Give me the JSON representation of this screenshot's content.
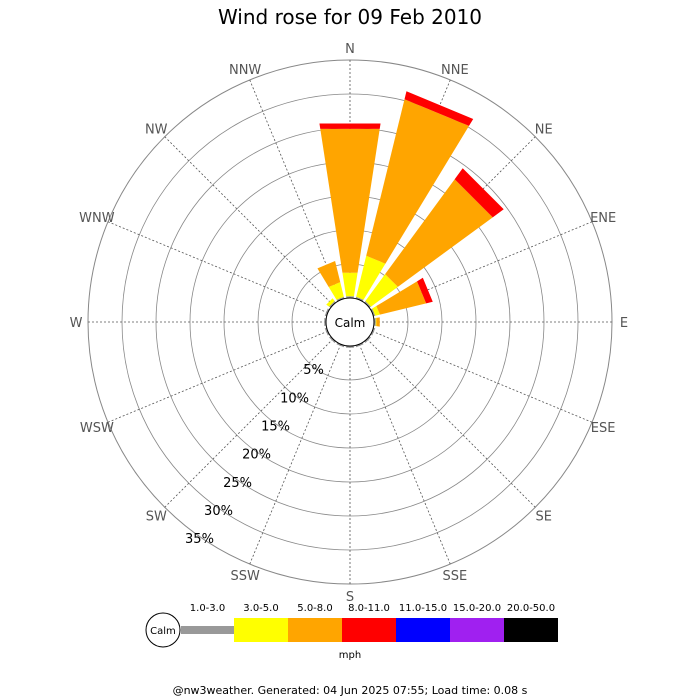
{
  "chart_data": {
    "type": "wind-rose",
    "title": "Wind rose for 09 Feb 2010",
    "directions": [
      "N",
      "NNE",
      "NE",
      "ENE",
      "E",
      "ESE",
      "SE",
      "SSE",
      "S",
      "SSW",
      "SW",
      "WSW",
      "W",
      "WNW",
      "NW",
      "NNW"
    ],
    "rings": [
      5,
      10,
      15,
      20,
      25,
      30,
      35
    ],
    "ring_labels": [
      "5%",
      "10%",
      "15%",
      "20%",
      "25%",
      "30%",
      "35%"
    ],
    "r_max": 35,
    "calm_label": "Calm",
    "unit": "mph",
    "speed_bins": [
      {
        "label": "1.0-3.0",
        "color": "#999999"
      },
      {
        "label": "3.0-5.0",
        "color": "#ffff00"
      },
      {
        "label": "5.0-8.0",
        "color": "#ffa500"
      },
      {
        "label": "8.0-11.0",
        "color": "#ff0000"
      },
      {
        "label": "11.0-15.0",
        "color": "#0000ff"
      },
      {
        "label": "15.0-20.0",
        "color": "#a020f0"
      },
      {
        "label": "20.0-50.0",
        "color": "#000000"
      }
    ],
    "series": [
      {
        "direction": "N",
        "cumulative": [
          0.3,
          3.8,
          25.2,
          26.0
        ]
      },
      {
        "direction": "NNE",
        "cumulative": [
          0.3,
          6.5,
          30.2,
          31.4
        ]
      },
      {
        "direction": "NE",
        "cumulative": [
          0.3,
          5.2,
          22.5,
          24.5
        ]
      },
      {
        "direction": "ENE",
        "cumulative": [
          0.3,
          1.0,
          8.0,
          9.0
        ]
      },
      {
        "direction": "E",
        "cumulative": [
          0.3,
          0.4,
          0.9,
          0.9
        ]
      },
      {
        "direction": "ESE",
        "cumulative": [
          0.3,
          0.3,
          0.3,
          0.3
        ]
      },
      {
        "direction": "SE",
        "cumulative": [
          0.3,
          0.3,
          0.3,
          0.3
        ]
      },
      {
        "direction": "SSE",
        "cumulative": [
          0.3,
          0.3,
          0.3,
          0.3
        ]
      },
      {
        "direction": "S",
        "cumulative": [
          0.3,
          0.3,
          0.3,
          0.3
        ]
      },
      {
        "direction": "SSW",
        "cumulative": [
          0.3,
          0.3,
          0.3,
          0.3
        ]
      },
      {
        "direction": "SW",
        "cumulative": [
          0.3,
          0.3,
          0.3,
          0.3
        ]
      },
      {
        "direction": "WSW",
        "cumulative": [
          0.3,
          0.3,
          0.3,
          0.3
        ]
      },
      {
        "direction": "W",
        "cumulative": [
          0.3,
          0.3,
          0.3,
          0.3
        ]
      },
      {
        "direction": "WNW",
        "cumulative": [
          0.3,
          0.3,
          0.3,
          0.3
        ]
      },
      {
        "direction": "NW",
        "cumulative": [
          0.3,
          0.8,
          0.8,
          0.8
        ]
      },
      {
        "direction": "NNW",
        "cumulative": [
          0.3,
          2.5,
          5.7,
          5.7
        ]
      }
    ]
  },
  "footer": {
    "text": "@nw3weather. Generated: 04 Jun 2025 07:55; Load time: 0.08 s"
  }
}
